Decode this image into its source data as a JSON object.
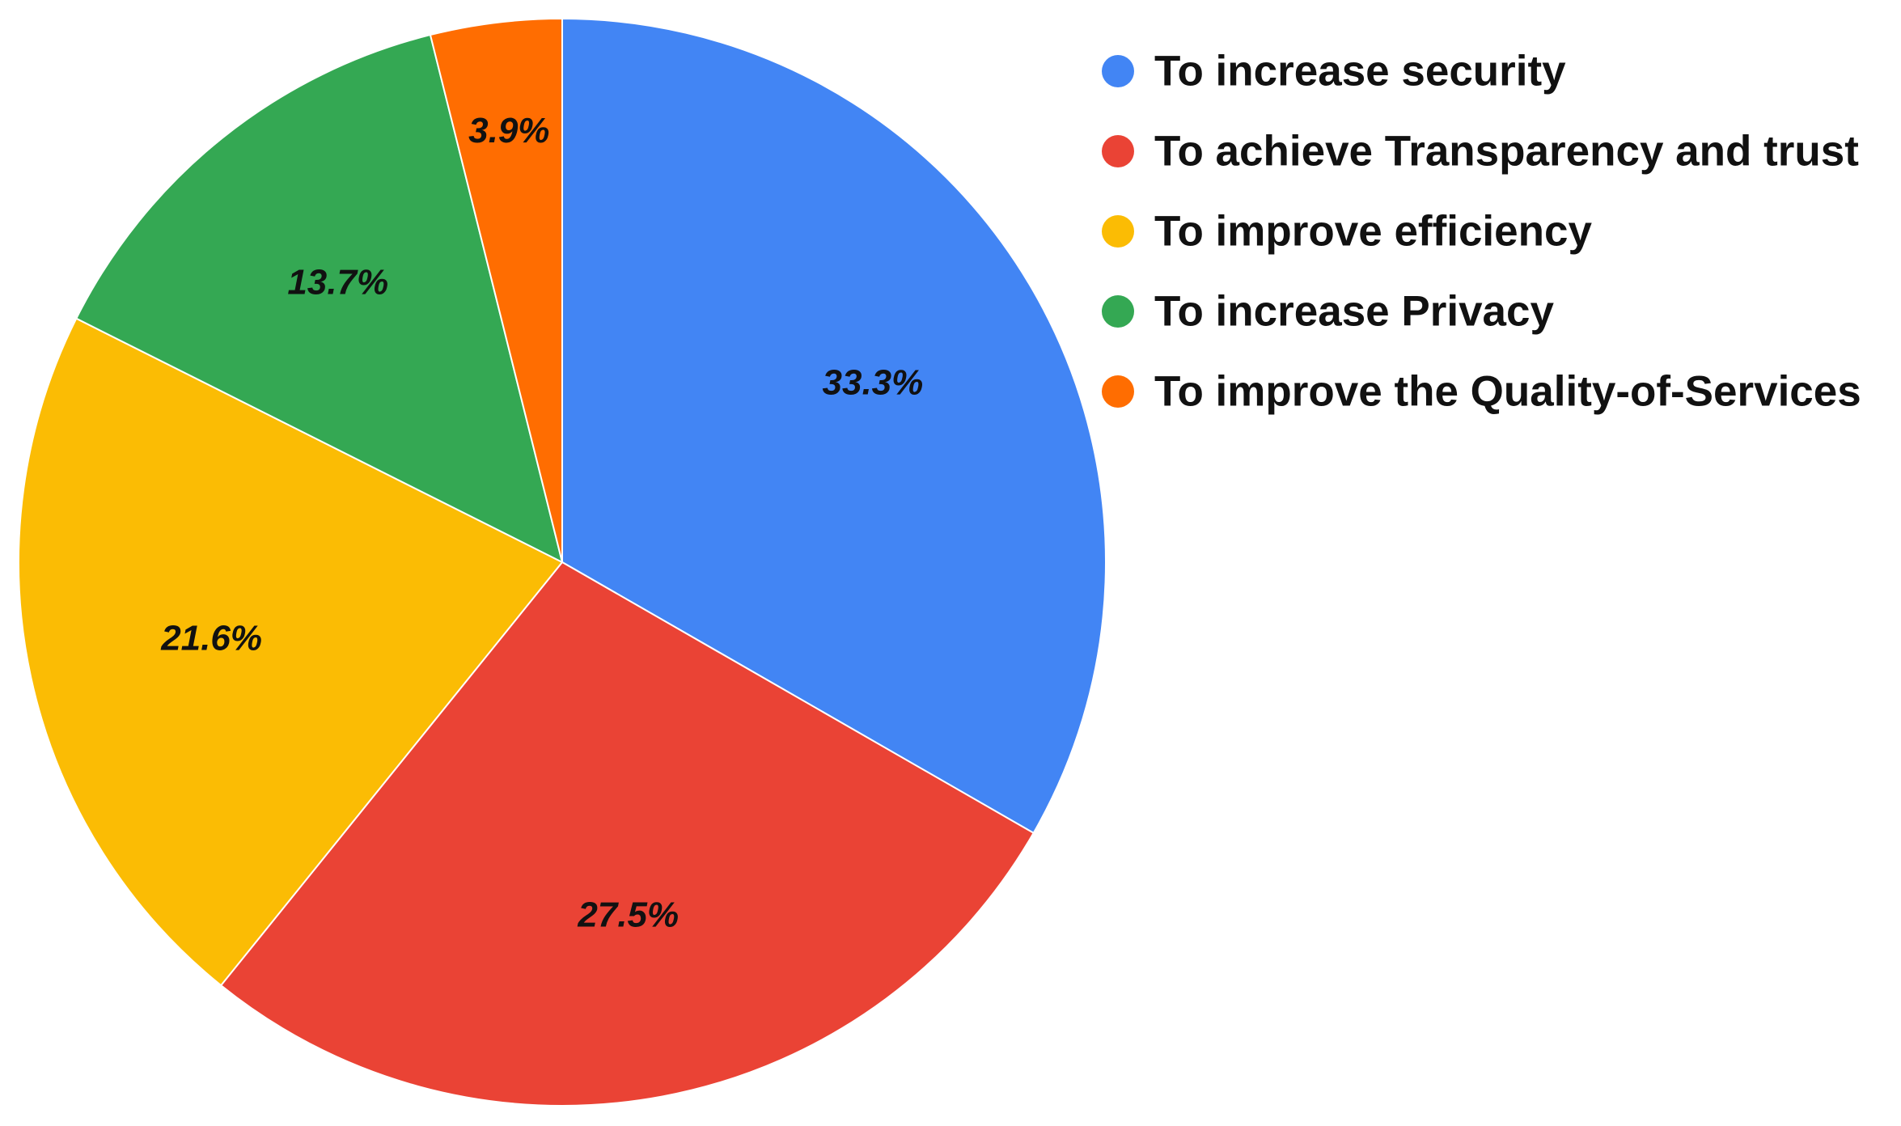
{
  "chart_data": {
    "type": "pie",
    "title": "",
    "legend_position": "right",
    "start_angle_deg": 0,
    "direction": "clockwise",
    "slices": [
      {
        "label": "To increase security",
        "value": 33.3,
        "value_label": "33.3%",
        "color": "#4285F4"
      },
      {
        "label": "To achieve Transparency and trust",
        "value": 27.5,
        "value_label": "27.5%",
        "color": "#EA4335"
      },
      {
        "label": "To improve efficiency",
        "value": 21.6,
        "value_label": "21.6%",
        "color": "#FBBC04"
      },
      {
        "label": "To increase Privacy",
        "value": 13.7,
        "value_label": "13.7%",
        "color": "#34A853"
      },
      {
        "label": "To improve the Quality-of-Services",
        "value": 3.9,
        "value_label": "3.9%",
        "color": "#FF6D01"
      }
    ]
  }
}
